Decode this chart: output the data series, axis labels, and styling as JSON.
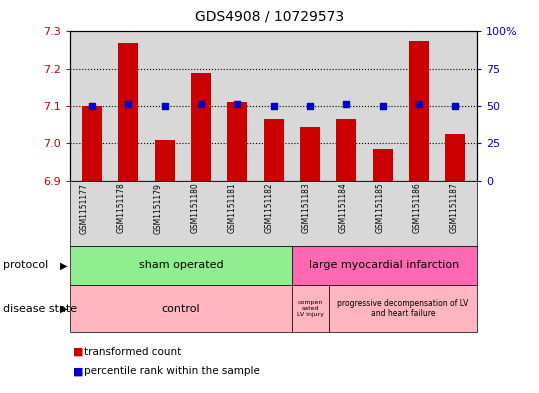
{
  "title": "GDS4908 / 10729573",
  "samples": [
    "GSM1151177",
    "GSM1151178",
    "GSM1151179",
    "GSM1151180",
    "GSM1151181",
    "GSM1151182",
    "GSM1151183",
    "GSM1151184",
    "GSM1151185",
    "GSM1151186",
    "GSM1151187"
  ],
  "bar_values": [
    7.1,
    7.27,
    7.01,
    7.19,
    7.11,
    7.065,
    7.045,
    7.065,
    6.985,
    7.275,
    7.025
  ],
  "dot_values": [
    7.1,
    7.105,
    7.1,
    7.105,
    7.105,
    7.1,
    7.1,
    7.105,
    7.1,
    7.105,
    7.1
  ],
  "ylim_left": [
    6.9,
    7.3
  ],
  "ylim_right": [
    0,
    100
  ],
  "yticks_left": [
    6.9,
    7.0,
    7.1,
    7.2,
    7.3
  ],
  "yticks_right": [
    0,
    25,
    50,
    75,
    100
  ],
  "ytick_labels_right": [
    "0",
    "25",
    "50",
    "75",
    "100%"
  ],
  "bar_color": "#cc0000",
  "dot_color": "#0000cc",
  "plot_bg_color": "#d8d8d8",
  "protocol_sham": "sham operated",
  "protocol_large": "large myocardial infarction",
  "disease_control": "control",
  "disease_comp": "compen\nsated\nLV injury",
  "disease_prog": "progressive decompensation of LV\nand heart failure",
  "protocol_row_label": "protocol",
  "disease_row_label": "disease state",
  "legend_bar": "transformed count",
  "legend_dot": "percentile rank within the sample",
  "sham_count": 6,
  "large_count": 5,
  "control_count": 6,
  "comp_count": 1,
  "prog_count": 4,
  "sham_color": "#90ee90",
  "large_color": "#ff69b4",
  "disease_color": "#ffb6c1"
}
